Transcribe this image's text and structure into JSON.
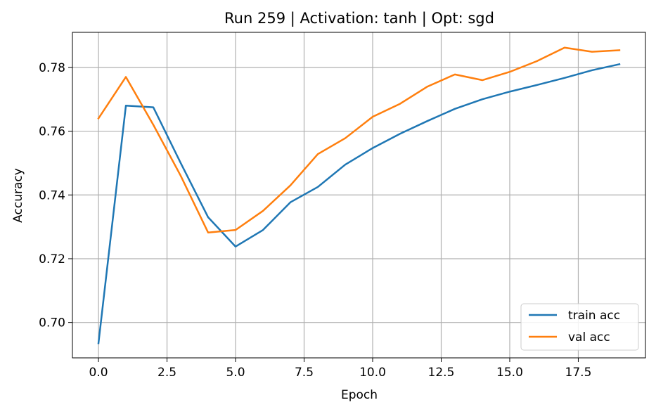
{
  "chart_data": {
    "type": "line",
    "title": "Run 259 | Activation: tanh | Opt: sgd",
    "xlabel": "Epoch",
    "ylabel": "Accuracy",
    "xlim": [
      -0.95,
      19.95
    ],
    "ylim": [
      0.6889,
      0.791
    ],
    "xticks": [
      0.0,
      2.5,
      5.0,
      7.5,
      10.0,
      12.5,
      15.0,
      17.5
    ],
    "xtick_labels": [
      "0.0",
      "2.5",
      "5.0",
      "7.5",
      "10.0",
      "12.5",
      "15.0",
      "17.5"
    ],
    "yticks": [
      0.7,
      0.72,
      0.74,
      0.76,
      0.78
    ],
    "ytick_labels": [
      "0.70",
      "0.72",
      "0.74",
      "0.76",
      "0.78"
    ],
    "grid": true,
    "legend_position": "bottom-right",
    "x": [
      0,
      1,
      2,
      3,
      4,
      5,
      6,
      7,
      8,
      9,
      10,
      11,
      12,
      13,
      14,
      15,
      16,
      17,
      18,
      19
    ],
    "series": [
      {
        "name": "train acc",
        "color": "#1f77b4",
        "values": [
          0.6935,
          0.768,
          0.7675,
          0.75,
          0.733,
          0.7238,
          0.729,
          0.7377,
          0.7425,
          0.7495,
          0.7547,
          0.7592,
          0.7632,
          0.767,
          0.77,
          0.7724,
          0.7745,
          0.7767,
          0.7791,
          0.781
        ]
      },
      {
        "name": "val acc",
        "color": "#ff7f0e",
        "values": [
          0.764,
          0.777,
          0.762,
          0.746,
          0.7282,
          0.729,
          0.735,
          0.743,
          0.7528,
          0.7578,
          0.7645,
          0.7686,
          0.774,
          0.7778,
          0.776,
          0.7786,
          0.782,
          0.7862,
          0.7849,
          0.7854
        ]
      }
    ]
  }
}
